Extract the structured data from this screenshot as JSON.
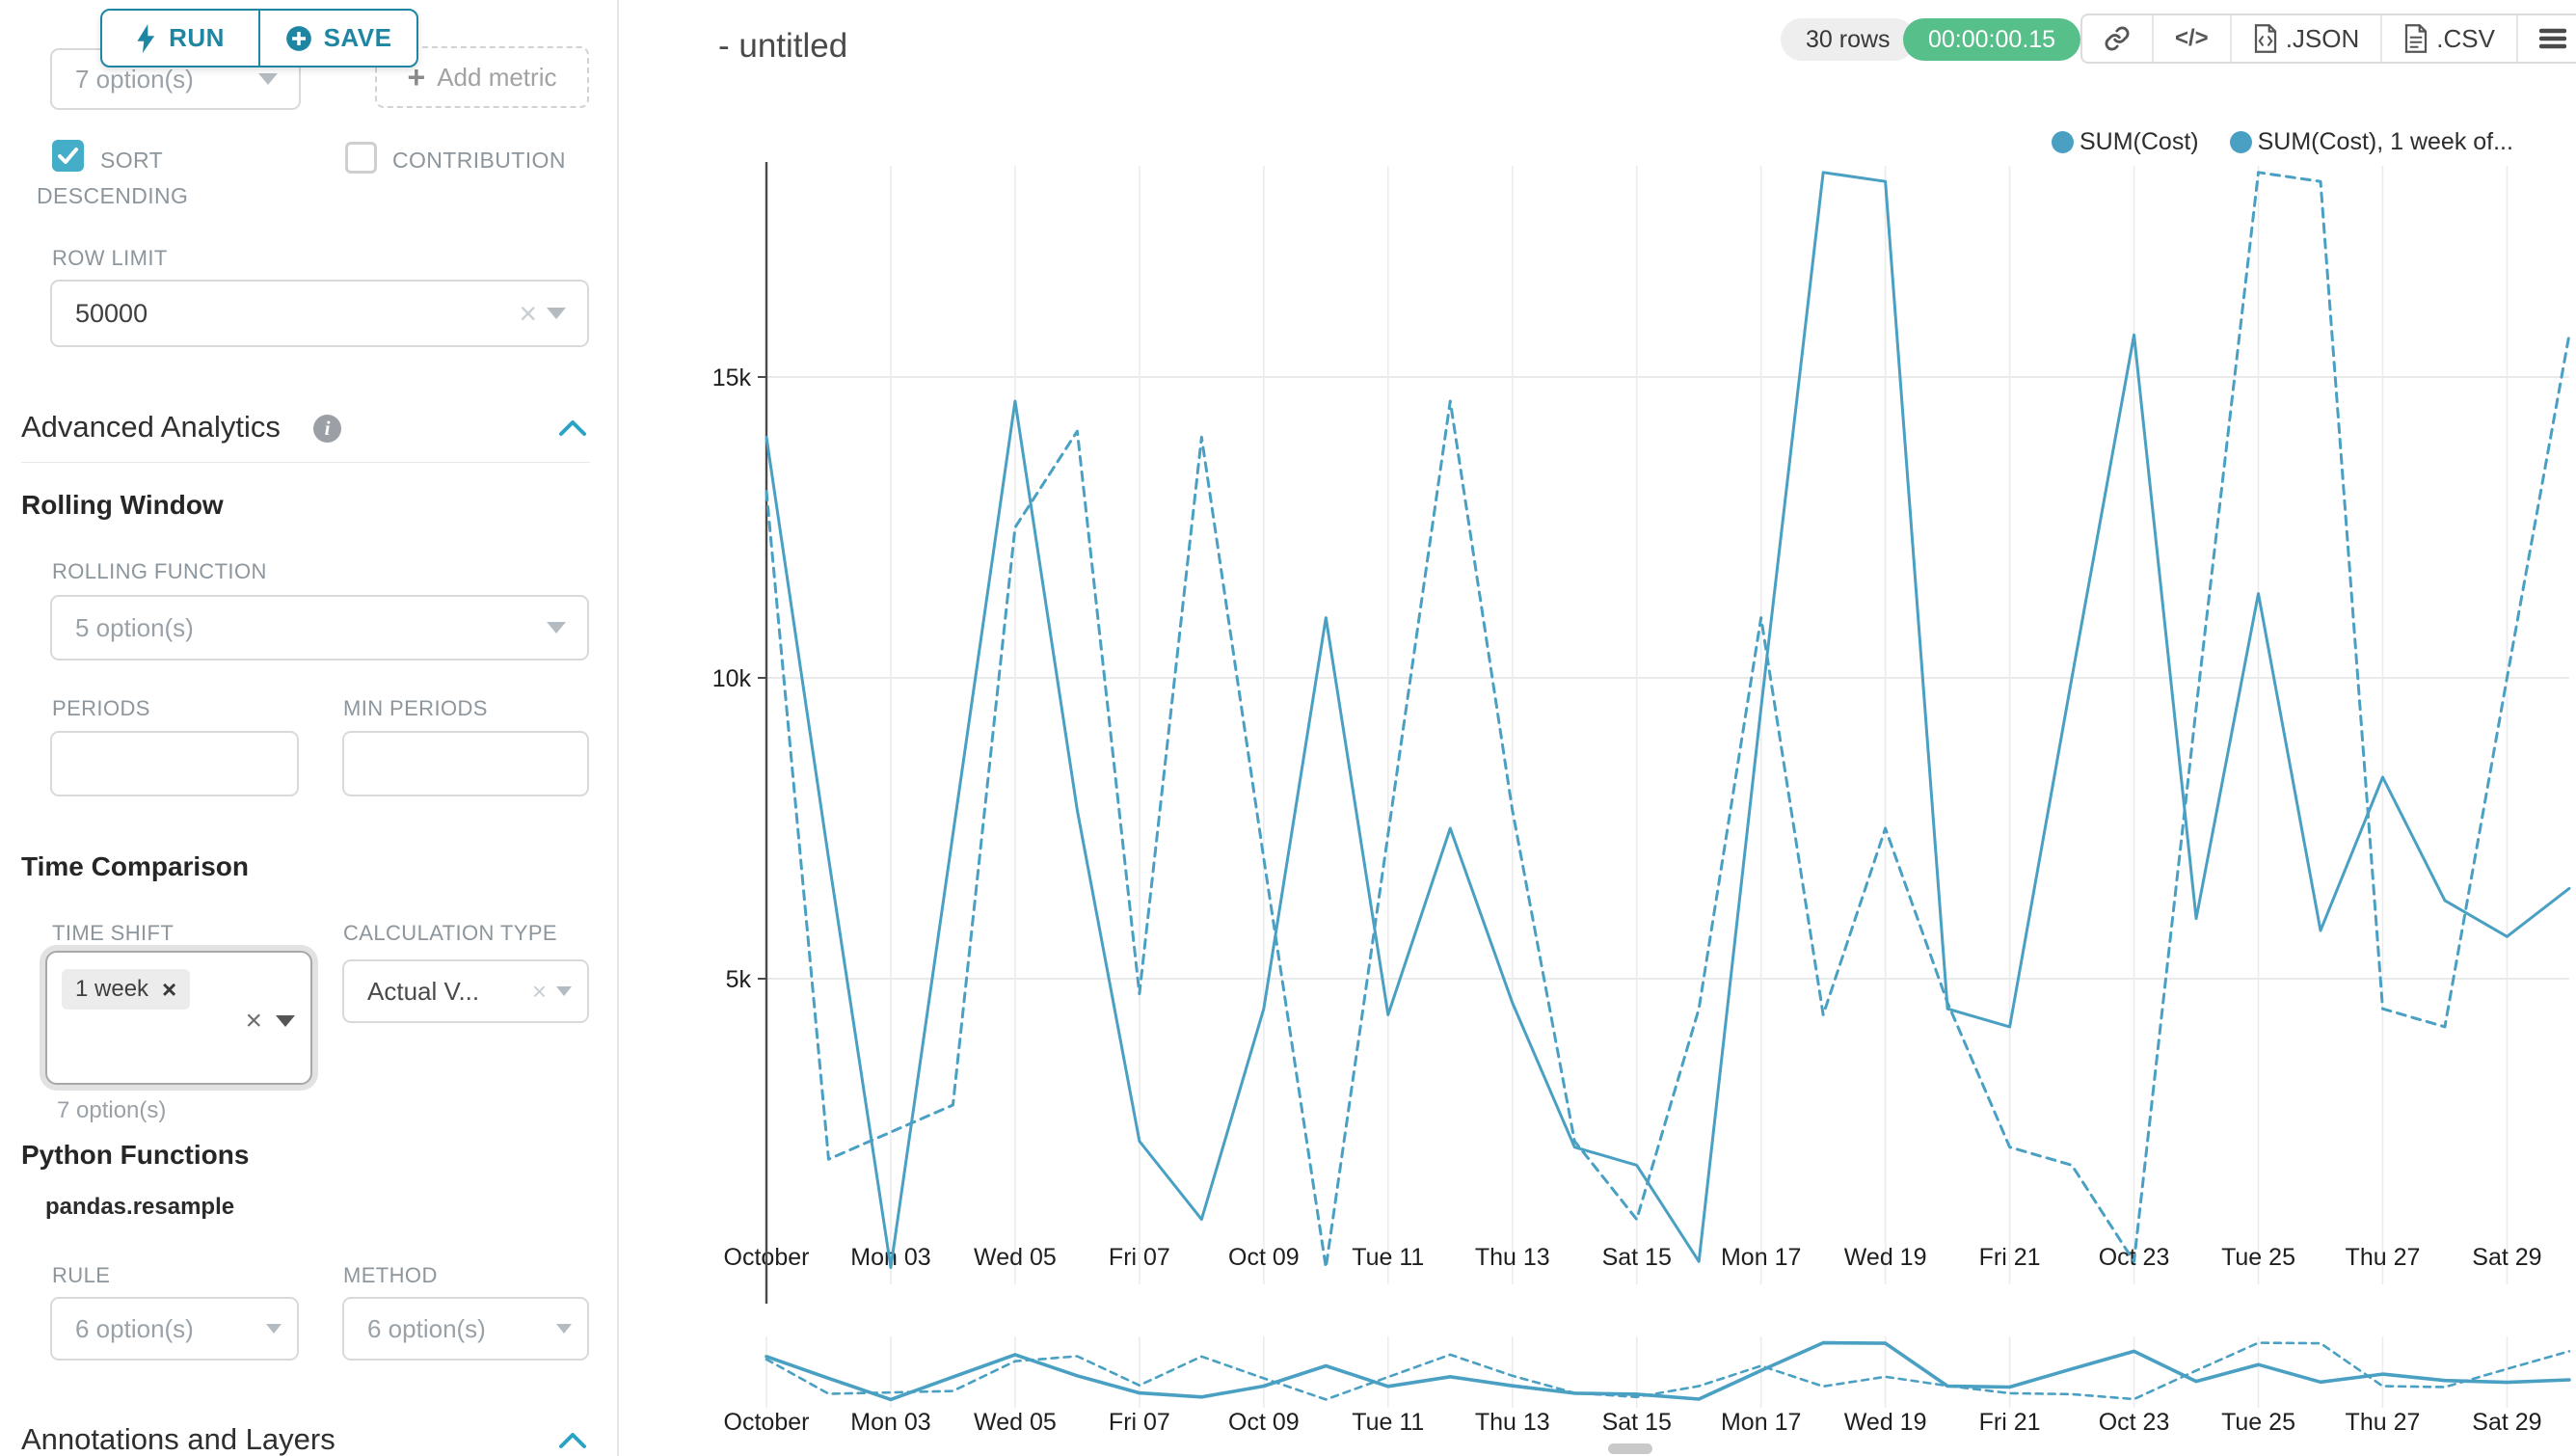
{
  "sidebar": {
    "run_label": "RUN",
    "save_label": "SAVE",
    "metric_select_value": "7 option(s)",
    "add_metric_label": "Add metric",
    "sort_descending_label": "SORT DESCENDING",
    "contribution_label": "CONTRIBUTION",
    "row_limit_label": "ROW LIMIT",
    "row_limit_value": "50000",
    "advanced_analytics_title": "Advanced Analytics",
    "rolling_window_title": "Rolling Window",
    "rolling_function_label": "ROLLING FUNCTION",
    "rolling_function_value": "5 option(s)",
    "periods_label": "PERIODS",
    "min_periods_label": "MIN PERIODS",
    "time_comparison_title": "Time Comparison",
    "time_shift_label": "TIME SHIFT",
    "time_shift_tag": "1 week",
    "time_shift_hint": "7 option(s)",
    "calculation_type_label": "CALCULATION TYPE",
    "calculation_type_value": "Actual V...",
    "python_functions_title": "Python Functions",
    "pandas_resample_label": "pandas.resample",
    "rule_label": "RULE",
    "rule_value": "6 option(s)",
    "method_label": "METHOD",
    "method_value": "6 option(s)",
    "annotations_title": "Annotations and Layers"
  },
  "header": {
    "title": "- untitled",
    "rows_badge": "30 rows",
    "timer": "00:00:00.15",
    "json_label": ".JSON",
    "csv_label": ".CSV"
  },
  "icons": {
    "code": "</>"
  },
  "colors": {
    "series": "#4aa0c3",
    "primary": "#1e86a3",
    "timer_green": "#57bf8a",
    "checkbox_teal": "#44adc7"
  },
  "chart_data": {
    "type": "line",
    "title": "",
    "xlabel": "",
    "ylabel": "",
    "x_unit": "day (October 2022, daily)",
    "x_tick_labels": [
      "October",
      "Mon 03",
      "Wed 05",
      "Fri 07",
      "Oct 09",
      "Tue 11",
      "Thu 13",
      "Sat 15",
      "Mon 17",
      "Wed 19",
      "Fri 21",
      "Oct 23",
      "Tue 25",
      "Thu 27",
      "Sat 29"
    ],
    "y_ticks": [
      5000,
      10000,
      15000
    ],
    "y_tick_labels": [
      "5k",
      "10k",
      "15k"
    ],
    "ylim": [
      0,
      18600
    ],
    "grid": true,
    "legend_position": "top-right",
    "series": [
      {
        "name": "SUM(Cost)",
        "legend_label": "SUM(Cost)",
        "style": "solid",
        "values": [
          14000,
          7000,
          200,
          7400,
          14600,
          7800,
          2300,
          1000,
          4500,
          11000,
          4400,
          7500,
          4600,
          2200,
          1900,
          300,
          9500,
          18400,
          18250,
          4500,
          4200,
          10000,
          15700,
          6000,
          11400,
          5800,
          8350,
          6300,
          5700,
          6500
        ]
      },
      {
        "name": "SUM(Cost), 1 week offset",
        "legend_label": "SUM(Cost), 1 week of...",
        "style": "dashed",
        "values": [
          13100,
          2000,
          2450,
          2900,
          12500,
          14100,
          4750,
          14000,
          7000,
          200,
          7400,
          14600,
          7800,
          2300,
          1000,
          4500,
          11000,
          4400,
          7500,
          4600,
          2200,
          1900,
          300,
          9500,
          18400,
          18250,
          4500,
          4200,
          10000,
          15700
        ]
      }
    ]
  }
}
